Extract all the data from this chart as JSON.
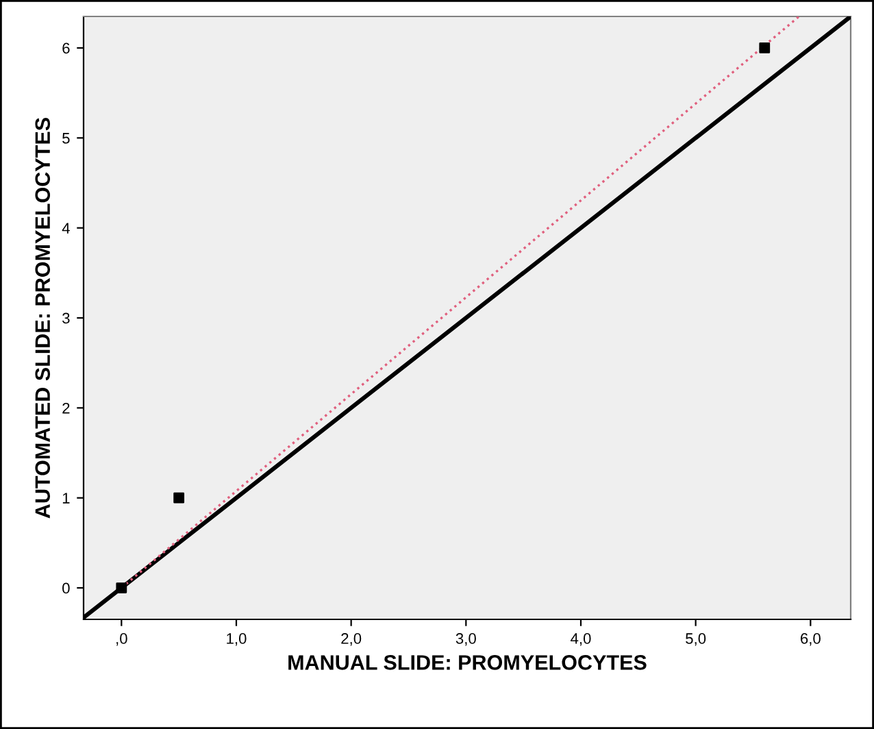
{
  "chart_data": {
    "type": "scatter",
    "xlabel": "MANUAL SLIDE: PROMYELOCYTES",
    "ylabel": "AUTOMATED SLIDE: PROMYELOCYTES",
    "xlim": [
      -0.33,
      6.35
    ],
    "ylim": [
      -0.35,
      6.35
    ],
    "xticks": [
      {
        "value": 0,
        "label": ",0"
      },
      {
        "value": 1,
        "label": "1,0"
      },
      {
        "value": 2,
        "label": "2,0"
      },
      {
        "value": 3,
        "label": "3,0"
      },
      {
        "value": 4,
        "label": "4,0"
      },
      {
        "value": 5,
        "label": "5,0"
      },
      {
        "value": 6,
        "label": "6,0"
      }
    ],
    "yticks": [
      0,
      1,
      2,
      3,
      4,
      5,
      6
    ],
    "grid": false,
    "legend": false,
    "series": [
      {
        "color": "#000000",
        "marker": "square",
        "x": [
          0,
          0.5,
          5.6
        ],
        "values": [
          0,
          1,
          6
        ]
      },
      {
        "type": "line",
        "color": "#000000",
        "line_style": "solid",
        "x": [
          -0.33,
          6.35
        ],
        "values": [
          -0.33,
          6.35
        ]
      },
      {
        "type": "line",
        "color": "#e0607e",
        "line_style": "dotted",
        "x": [
          0,
          5.9
        ],
        "values": [
          0,
          6.35
        ]
      }
    ]
  }
}
